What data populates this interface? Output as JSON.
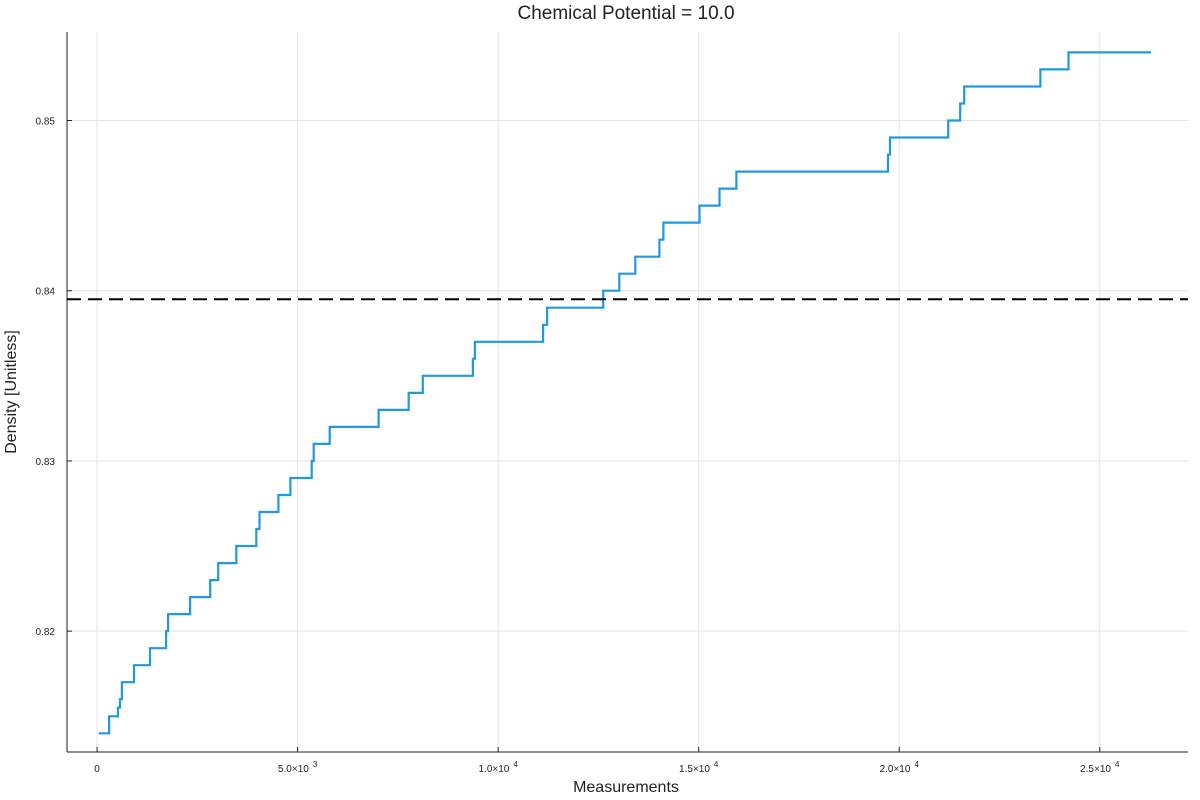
{
  "chart_data": {
    "type": "line",
    "title": "Chemical Potential = 10.0",
    "xlabel": "Measurements",
    "ylabel": "Density [Unitless]",
    "xlim": [
      -750,
      27200
    ],
    "ylim": [
      0.8129,
      0.8552
    ],
    "x_ticks": [
      {
        "value": 0,
        "label": "0"
      },
      {
        "value": 5000,
        "label": "5.0×10",
        "exp": "3"
      },
      {
        "value": 10000,
        "label": "1.0×10",
        "exp": "4"
      },
      {
        "value": 15000,
        "label": "1.5×10",
        "exp": "4"
      },
      {
        "value": 20000,
        "label": "2.0×10",
        "exp": "4"
      },
      {
        "value": 25000,
        "label": "2.5×10",
        "exp": "4"
      }
    ],
    "y_ticks": [
      {
        "value": 0.82,
        "label": "0.82"
      },
      {
        "value": 0.83,
        "label": "0.83"
      },
      {
        "value": 0.84,
        "label": "0.84"
      },
      {
        "value": 0.85,
        "label": "0.85"
      }
    ],
    "grid": true,
    "series": [
      {
        "color": "#1f9ae0",
        "style": "steps-post",
        "x": [
          40,
          300,
          520,
          570,
          620,
          920,
          1320,
          1720,
          1770,
          2320,
          2820,
          3020,
          3470,
          3970,
          4050,
          4520,
          4820,
          5350,
          5400,
          5800,
          7020,
          7770,
          8120,
          9370,
          9420,
          11120,
          11220,
          12620,
          13020,
          13420,
          14020,
          14120,
          15020,
          15520,
          15940,
          19720,
          19770,
          20020,
          21220,
          21520,
          21620,
          23520,
          24220,
          26280
        ],
        "y": [
          0.814,
          0.815,
          0.8155,
          0.816,
          0.817,
          0.818,
          0.819,
          0.82,
          0.821,
          0.822,
          0.823,
          0.824,
          0.825,
          0.826,
          0.827,
          0.828,
          0.829,
          0.83,
          0.831,
          0.832,
          0.833,
          0.834,
          0.835,
          0.836,
          0.837,
          0.838,
          0.839,
          0.84,
          0.841,
          0.842,
          0.843,
          0.844,
          0.845,
          0.846,
          0.847,
          0.848,
          0.849,
          0.849,
          0.85,
          0.851,
          0.852,
          0.853,
          0.854,
          0.854
        ]
      },
      {
        "color": "#000000",
        "style": "dashed",
        "type": "hline",
        "y": 0.8395
      }
    ]
  }
}
